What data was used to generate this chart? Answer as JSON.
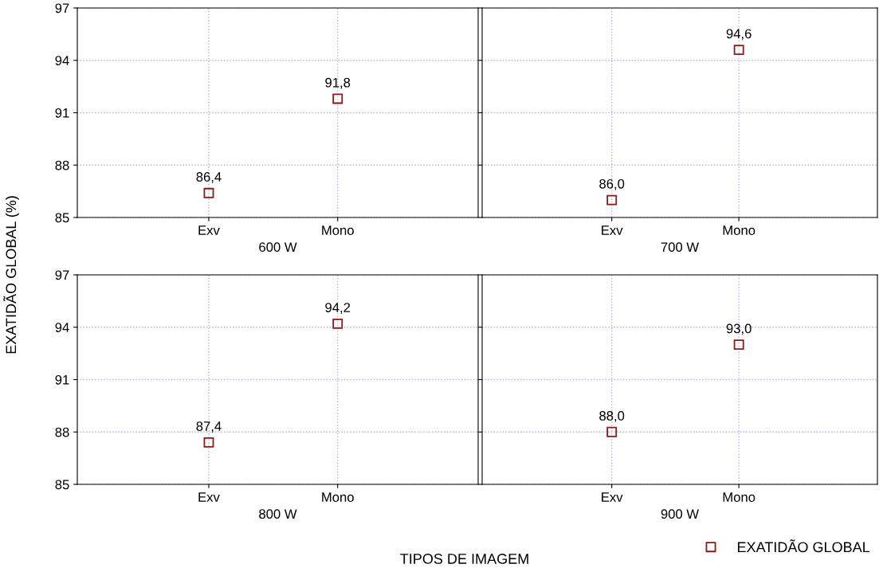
{
  "chart_data": [
    {
      "type": "scatter",
      "xlabel": "600 W",
      "ylabel": "EXATIDÃO GLOBAL (%)",
      "categories": [
        "Exv",
        "Mono"
      ],
      "ylim": [
        85,
        97
      ],
      "yticks": [
        85,
        88,
        91,
        94,
        97
      ],
      "grid": true,
      "marker": "square",
      "series": [
        {
          "color": "#8b1a1a",
          "values": [
            86.4,
            91.8
          ],
          "value_labels": [
            "86,4",
            "91,8"
          ]
        }
      ]
    },
    {
      "type": "scatter",
      "xlabel": "700 W",
      "categories": [
        "Exv",
        "Mono"
      ],
      "ylim": [
        85,
        97
      ],
      "yticks": [
        85,
        88,
        91,
        94,
        97
      ],
      "grid": true,
      "marker": "square",
      "tick_labels": "x",
      "series": [
        {
          "color": "#8b1a1a",
          "values": [
            86.0,
            94.6
          ],
          "value_labels": [
            "86,0",
            "94,6"
          ]
        }
      ]
    },
    {
      "type": "scatter",
      "xlabel": "800 W",
      "categories": [
        "Exv",
        "Mono"
      ],
      "ylim": [
        85,
        97
      ],
      "yticks": [
        85,
        88,
        91,
        94,
        97
      ],
      "grid": true,
      "marker": "square",
      "annotations": [
        "TIPOS DE IMAGEM"
      ],
      "series": [
        {
          "color": "#8b1a1a",
          "values": [
            87.4,
            94.2
          ],
          "value_labels": [
            "87,4",
            "94,2"
          ]
        }
      ]
    },
    {
      "type": "scatter",
      "xlabel": "900 W",
      "categories": [
        "Exv",
        "Mono"
      ],
      "ylim": [
        85,
        97
      ],
      "yticks": [
        85,
        88,
        91,
        94,
        97
      ],
      "grid": true,
      "marker": "square",
      "tick_labels": "x",
      "legend": "bottom right",
      "series": [
        {
          "name": "EXATIDÃO GLOBAL",
          "color": "#8b1a1a",
          "values": [
            88.0,
            93.0
          ],
          "value_labels": [
            "88,0",
            "93,0"
          ]
        }
      ]
    }
  ]
}
